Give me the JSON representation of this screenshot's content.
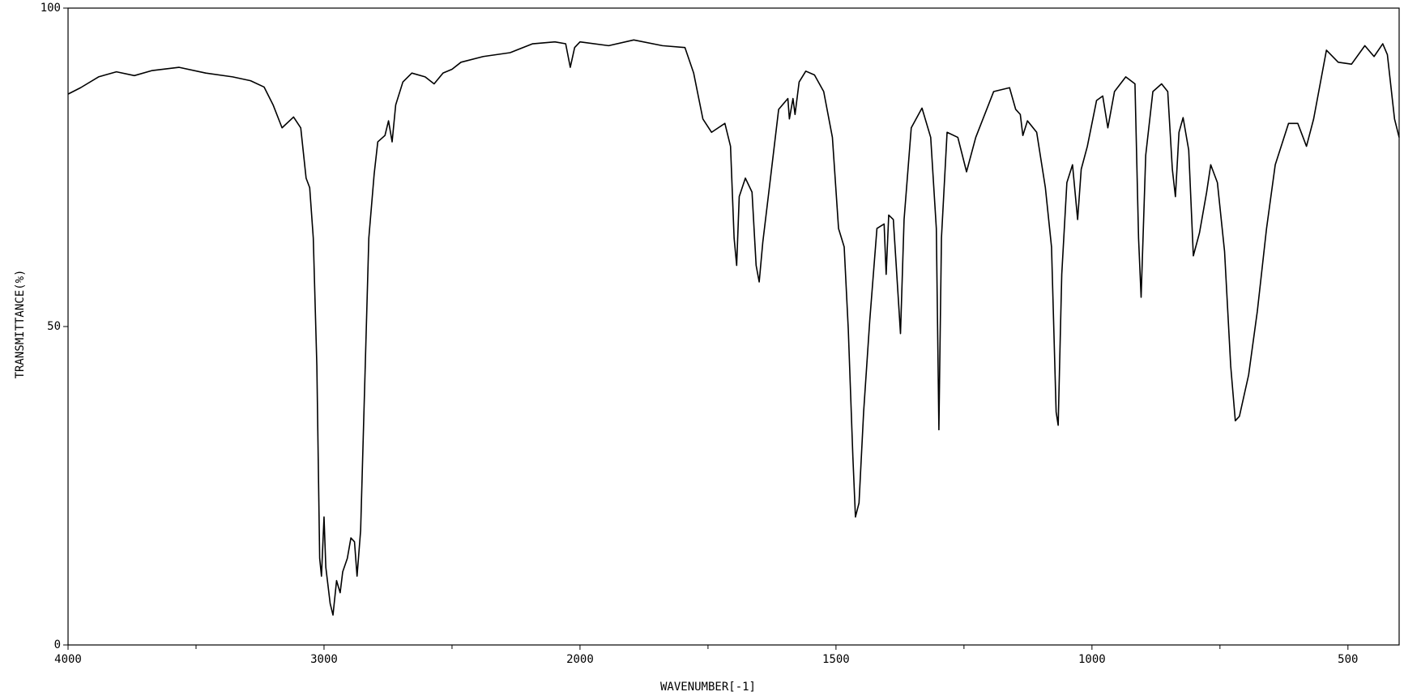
{
  "chart_data": {
    "type": "line",
    "xlabel": "WAVENUMBER[-1]",
    "ylabel": "TRANSMITTANCE(%)",
    "color": "#000000",
    "xlim": [
      4000,
      400
    ],
    "x_scale_break": 2000,
    "x_scale_factor": 2,
    "xticks": [
      4000,
      3000,
      2000,
      1500,
      1000,
      500
    ],
    "xminorticks": [
      3500,
      2500,
      1750,
      1250,
      750
    ],
    "ylim": [
      0,
      100
    ],
    "yticks": [
      0,
      50,
      100
    ],
    "x": [
      4000,
      3951,
      3881,
      3811,
      3741,
      3671,
      3566,
      3462,
      3357,
      3287,
      3234,
      3199,
      3164,
      3119,
      3091,
      3070,
      3056,
      3042,
      3028,
      3017,
      3010,
      3000,
      2993,
      2976,
      2965,
      2951,
      2937,
      2927,
      2909,
      2895,
      2881,
      2871,
      2857,
      2839,
      2825,
      2804,
      2790,
      2762,
      2748,
      2734,
      2720,
      2692,
      2657,
      2605,
      2570,
      2535,
      2500,
      2465,
      2378,
      2273,
      2185,
      2098,
      2056,
      2038,
      2021,
      2000,
      1944,
      1895,
      1839,
      1795,
      1778,
      1760,
      1743,
      1717,
      1706,
      1699,
      1694,
      1689,
      1677,
      1664,
      1656,
      1650,
      1643,
      1629,
      1612,
      1594,
      1591,
      1584,
      1580,
      1572,
      1559,
      1542,
      1524,
      1507,
      1495,
      1484,
      1476,
      1467,
      1462,
      1455,
      1446,
      1434,
      1420,
      1406,
      1402,
      1397,
      1388,
      1379,
      1374,
      1367,
      1353,
      1332,
      1315,
      1304,
      1299,
      1294,
      1283,
      1262,
      1245,
      1227,
      1192,
      1161,
      1149,
      1140,
      1135,
      1126,
      1108,
      1091,
      1079,
      1070,
      1066,
      1059,
      1049,
      1038,
      1028,
      1021,
      1009,
      991,
      979,
      969,
      956,
      934,
      916,
      909,
      904,
      895,
      881,
      864,
      852,
      843,
      837,
      830,
      822,
      811,
      802,
      790,
      776,
      768,
      755,
      741,
      729,
      720,
      712,
      694,
      677,
      659,
      642,
      616,
      598,
      581,
      567,
      542,
      519,
      493,
      467,
      449,
      432,
      423,
      409,
      400
    ],
    "values": [
      86.5,
      87.5,
      89.2,
      90.0,
      89.4,
      90.2,
      90.7,
      89.8,
      89.2,
      88.6,
      87.6,
      84.8,
      81.2,
      82.9,
      81.2,
      73.3,
      71.8,
      63.9,
      43.8,
      13.6,
      10.8,
      20.1,
      12.2,
      6.5,
      4.7,
      10.1,
      8.2,
      11.5,
      13.6,
      16.8,
      16.2,
      10.8,
      18.0,
      43.8,
      63.9,
      74.0,
      79.0,
      80.0,
      82.3,
      79.0,
      84.8,
      88.4,
      89.8,
      89.2,
      88.1,
      89.8,
      90.4,
      91.5,
      92.4,
      93.0,
      94.4,
      94.7,
      94.4,
      90.7,
      93.8,
      94.7,
      94.1,
      95.0,
      94.1,
      93.8,
      89.8,
      82.6,
      80.5,
      81.9,
      78.3,
      63.9,
      59.6,
      70.4,
      73.3,
      71.1,
      59.6,
      57.0,
      63.2,
      72.6,
      84.1,
      85.8,
      82.6,
      85.8,
      83.3,
      88.4,
      90.1,
      89.5,
      86.9,
      79.7,
      65.4,
      62.5,
      49.6,
      29.5,
      20.1,
      22.3,
      36.6,
      51.0,
      65.4,
      66.1,
      58.2,
      67.5,
      66.8,
      55.3,
      48.9,
      66.8,
      81.2,
      84.3,
      79.7,
      65.4,
      33.8,
      63.9,
      80.5,
      79.7,
      74.3,
      79.7,
      86.9,
      87.5,
      84.1,
      83.3,
      80.0,
      82.3,
      80.5,
      71.8,
      62.5,
      36.6,
      34.5,
      58.2,
      72.6,
      75.4,
      66.8,
      74.7,
      78.3,
      85.5,
      86.2,
      81.2,
      86.9,
      89.2,
      88.1,
      63.9,
      54.6,
      76.9,
      86.9,
      88.1,
      86.9,
      74.7,
      70.4,
      80.5,
      82.8,
      77.7,
      61.1,
      64.7,
      71.1,
      75.4,
      72.6,
      61.8,
      43.8,
      35.2,
      35.9,
      42.4,
      52.4,
      65.4,
      75.4,
      81.9,
      81.9,
      78.3,
      82.6,
      93.4,
      91.5,
      91.2,
      94.1,
      92.4,
      94.4,
      92.7,
      82.6,
      79.7
    ]
  }
}
